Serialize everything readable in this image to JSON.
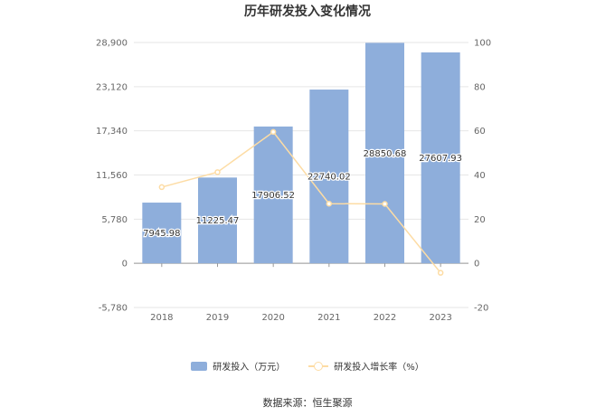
{
  "chart_data": {
    "type": "bar",
    "title": "历年研发投入变化情况",
    "categories": [
      "2018",
      "2019",
      "2020",
      "2021",
      "2022",
      "2023"
    ],
    "series": [
      {
        "name": "研发投入（万元）",
        "type": "bar",
        "axis": "left",
        "values": [
          7945.98,
          11225.47,
          17906.52,
          22740.02,
          28850.68,
          27607.93
        ],
        "labels": [
          "7945.98",
          "11225.47",
          "17906.52",
          "22740.02",
          "28850.68",
          "27607.93"
        ],
        "color": "#8eaedb"
      },
      {
        "name": "研发投入增长率（%）",
        "type": "line",
        "axis": "right",
        "values": [
          34.5,
          41.3,
          59.5,
          27.0,
          26.9,
          -4.3
        ],
        "color": "#fddca4"
      }
    ],
    "left_axis": {
      "ticks": [
        "28,900",
        "23,120",
        "17,340",
        "11,560",
        "5,780",
        "0",
        "-5,780"
      ],
      "ylim": [
        -5780,
        28900
      ]
    },
    "right_axis": {
      "ticks": [
        "100",
        "80",
        "60",
        "40",
        "20",
        "0",
        "-20"
      ],
      "ylim": [
        -20,
        100
      ]
    },
    "grid": true,
    "legend_position": "bottom",
    "source": "数据来源：恒生聚源"
  }
}
